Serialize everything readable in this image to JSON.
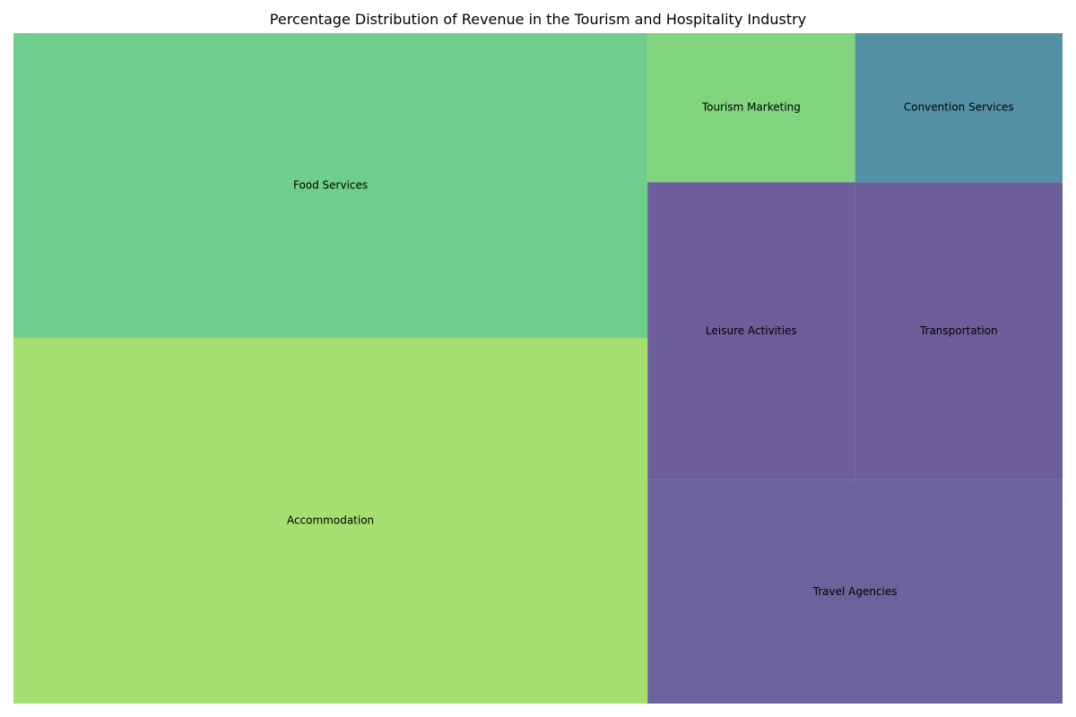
{
  "chart_data": {
    "type": "treemap",
    "title": "Percentage Distribution of Revenue in the Tourism and Hospitality Industry",
    "unit": "%",
    "categories": [
      "Accommodation",
      "Food Services",
      "Travel Agencies",
      "Leisure Activities",
      "Transportation",
      "Tourism Marketing",
      "Convention Services"
    ],
    "values": [
      30,
      25,
      12,
      8,
      8,
      4,
      4
    ],
    "colors": [
      "#a5df6f",
      "#6fce8d",
      "#6b639c",
      "#6b5e9a",
      "#6b5e9a",
      "#80d47e",
      "#5591a6"
    ],
    "grid": false,
    "legend": "none"
  }
}
